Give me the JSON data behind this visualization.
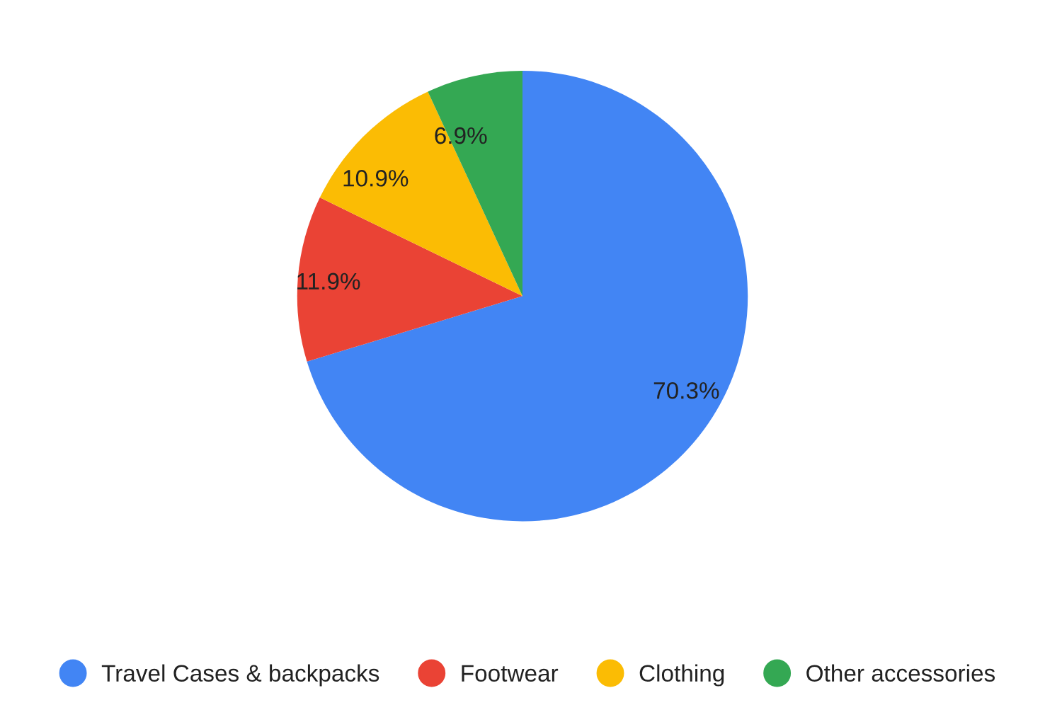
{
  "chart_data": {
    "type": "pie",
    "categories": [
      "Travel Cases & backpacks",
      "Footwear",
      "Clothing",
      "Other accessories"
    ],
    "values": [
      70.3,
      11.9,
      10.9,
      6.9
    ],
    "value_labels": [
      "70.3%",
      "11.9%",
      "10.9%",
      "6.9%"
    ],
    "colors": [
      "#4285f4",
      "#ea4335",
      "#fbbc04",
      "#34a853"
    ],
    "legend": "bottom"
  }
}
